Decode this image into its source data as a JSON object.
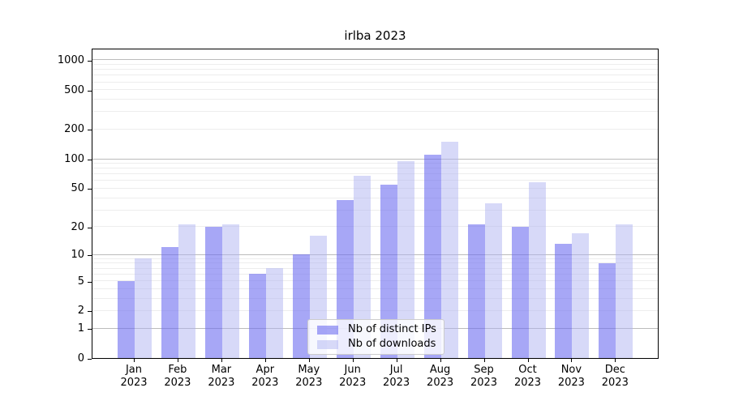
{
  "chart_data": {
    "type": "bar",
    "title": "irlba 2023",
    "xlabel": "",
    "ylabel": "",
    "yscale": "log1p",
    "ylim": [
      0,
      1320
    ],
    "yticks": [
      0,
      1,
      2,
      5,
      10,
      20,
      50,
      100,
      200,
      500,
      1000
    ],
    "grid": true,
    "legend_position": "lower-center-inside",
    "categories": [
      "Jan 2023",
      "Feb 2023",
      "Mar 2023",
      "Apr 2023",
      "May 2023",
      "Jun 2023",
      "Jul 2023",
      "Aug 2023",
      "Sep 2023",
      "Oct 2023",
      "Nov 2023",
      "Dec 2023"
    ],
    "series": [
      {
        "name": "Nb of distinct IPs",
        "color": "rgba(108,108,240,0.60)",
        "values": [
          5,
          12,
          20,
          6,
          10,
          38,
          54,
          110,
          21,
          20,
          13,
          8
        ]
      },
      {
        "name": "Nb of downloads",
        "color": "rgba(175,180,242,0.50)",
        "values": [
          9,
          21,
          21,
          7,
          16,
          67,
          95,
          150,
          35,
          58,
          17,
          21
        ]
      }
    ],
    "colors": {
      "axis": "#000000",
      "major_grid": "#bbbbbb",
      "minor_grid": "#ededed",
      "legend_border": "#cccccc"
    }
  }
}
